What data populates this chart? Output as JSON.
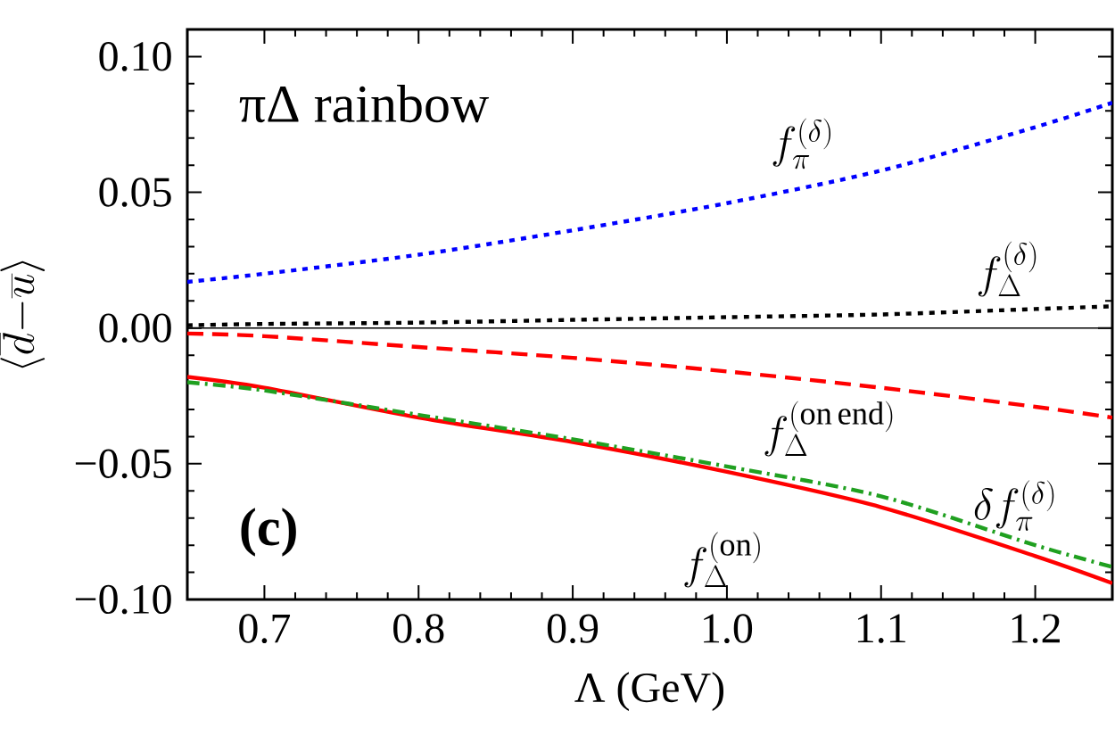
{
  "chart_data": {
    "type": "line",
    "title": "πΔ rainbow",
    "xlabel": "Λ  (GeV)",
    "ylabel": "\\langle \\overline{d}{-}\\overline{u}\\rangle",
    "x": [
      0.65,
      0.7,
      0.8,
      0.9,
      1.0,
      1.1,
      1.2,
      1.25
    ],
    "series": [
      {
        "name": "f_{\\pi}^{(\\delta)}",
        "color": "#0000ff",
        "line_style": "dotted",
        "values": [
          0.017,
          0.02,
          0.027,
          0.036,
          0.046,
          0.058,
          0.074,
          0.083
        ]
      },
      {
        "name": "f_{\\Delta}^{(\\delta)}",
        "color": "#000000",
        "line_style": "dotted",
        "values": [
          0.001,
          0.0015,
          0.002,
          0.003,
          0.004,
          0.005,
          0.007,
          0.008
        ]
      },
      {
        "name": "f_{\\Delta}^{(\\mathrm{on\\,end})}",
        "color": "#ff0000",
        "line_style": "dashed",
        "values": [
          -0.002,
          -0.003,
          -0.007,
          -0.011,
          -0.016,
          -0.022,
          -0.029,
          -0.033
        ]
      },
      {
        "name": "f_{\\Delta}^{(\\mathrm{on})}",
        "color": "#ff0000",
        "line_style": "solid",
        "values": [
          -0.018,
          -0.022,
          -0.033,
          -0.042,
          -0.053,
          -0.066,
          -0.084,
          -0.094
        ]
      },
      {
        "name": "\\delta f_{\\pi}^{(\\delta)}",
        "color": "#20a020",
        "line_style": "dashdot",
        "values": [
          -0.02,
          -0.023,
          -0.032,
          -0.041,
          -0.051,
          -0.062,
          -0.08,
          -0.088
        ]
      }
    ],
    "xlim": [
      0.65,
      1.25
    ],
    "ylim": [
      -0.1,
      0.11
    ],
    "xticks": [
      0.7,
      0.8,
      0.9,
      {
        "value": 1.0,
        "label": "1.0"
      },
      1.1,
      1.2
    ],
    "yticks": [
      {
        "value": -0.1,
        "label": "−0.10"
      },
      {
        "value": -0.05,
        "label": "−0.05"
      },
      {
        "value": 0,
        "label": "0.00"
      },
      {
        "value": 0.05,
        "label": "0.05"
      },
      {
        "value": 0.1,
        "label": "0.10"
      }
    ],
    "ref_lines": [
      {
        "axis": "y",
        "value": 0,
        "color": "#000000"
      }
    ],
    "annotations": [
      "(c)"
    ]
  }
}
